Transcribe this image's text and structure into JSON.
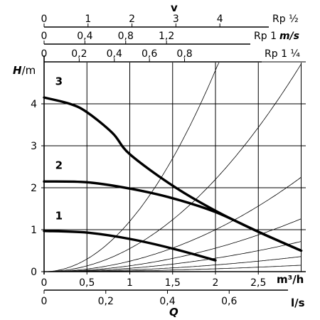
{
  "chart_data": {
    "type": "line",
    "y_axis": {
      "label_H": "H",
      "label_unit": "/m",
      "range": [
        0,
        5
      ],
      "ticks": [
        "0",
        "1",
        "2",
        "3",
        "4"
      ]
    },
    "x_axis_flow_m3h": {
      "label": "m³/h",
      "range": [
        0,
        3.0
      ],
      "ticks": [
        "0",
        "0,5",
        "1",
        "1,5",
        "2",
        "2,5"
      ]
    },
    "x_axis_flow_ls": {
      "label": "l/s",
      "range": [
        0,
        0.833
      ],
      "ticks": [
        "0",
        "0,2",
        "0,4",
        "0,6"
      ]
    },
    "q_label": "Q",
    "velocity_axes": {
      "title": "v",
      "scales": [
        {
          "name": "Rp ½",
          "unit": "",
          "ticks": [
            "0",
            "1",
            "2",
            "3",
            "4"
          ]
        },
        {
          "name": "Rp 1",
          "unit": "m/s",
          "ticks": [
            "0",
            "0,4",
            "0,8",
            "1,2"
          ]
        },
        {
          "name": "Rp 1 ¼",
          "unit": "",
          "ticks": [
            "0",
            "0,2",
            "0,4",
            "0,6",
            "0,8"
          ]
        }
      ]
    },
    "series": [
      {
        "name": "1",
        "x": [
          0,
          0.5,
          1.0,
          1.5,
          2.0
        ],
        "y": [
          0.97,
          0.93,
          0.78,
          0.55,
          0.27
        ]
      },
      {
        "name": "2",
        "x": [
          0,
          0.5,
          1.0,
          1.5,
          2.0,
          2.5,
          3.0
        ],
        "y": [
          2.15,
          2.13,
          1.98,
          1.75,
          1.42,
          0.95,
          0.5
        ]
      },
      {
        "name": "3",
        "x": [
          0,
          0.3,
          0.5,
          0.8,
          1.0,
          1.5,
          2.0,
          2.5,
          3.0
        ],
        "y": [
          4.15,
          4.0,
          3.8,
          3.3,
          2.8,
          2.05,
          1.45,
          0.95,
          0.5
        ]
      }
    ],
    "system_curves_coefficients": [
      1.2,
      0.55,
      0.25,
      0.14,
      0.08,
      0.04,
      0.017
    ],
    "grid": true
  }
}
